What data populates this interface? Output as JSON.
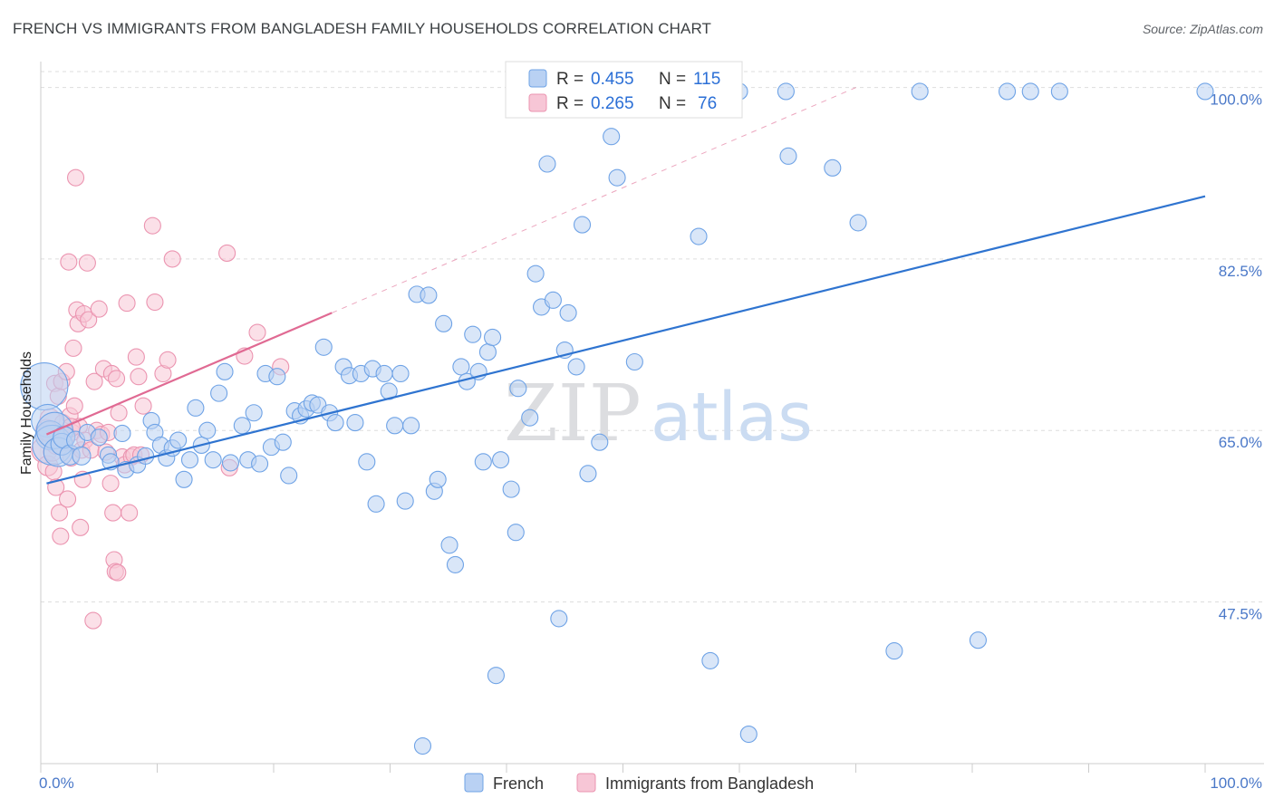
{
  "header": {
    "title": "FRENCH VS IMMIGRANTS FROM BANGLADESH FAMILY HOUSEHOLDS CORRELATION CHART",
    "source": "Source: ZipAtlas.com"
  },
  "watermark": {
    "zip": "ZIP",
    "atlas": "atlas"
  },
  "colors": {
    "french": "#6fa3e6",
    "french_fill": "#b9d1f3",
    "french_line": "#2f74d0",
    "bangladesh": "#eb94b0",
    "bangladesh_fill": "#f7c6d6",
    "bangladesh_line": "#e06a93",
    "grid": "#dddddd",
    "tick_label": "#4a78c8"
  },
  "legend": {
    "rows": [
      {
        "r_label": "R =",
        "r_value": "0.455",
        "n_label": "N =",
        "n_value": "115"
      },
      {
        "r_label": "R =",
        "r_value": "0.265",
        "n_label": "N =",
        "n_value": "76"
      }
    ]
  },
  "chart_data": {
    "type": "scatter",
    "title": "FRENCH VS IMMIGRANTS FROM BANGLADESH FAMILY HOUSEHOLDS CORRELATION CHART",
    "xlabel": "",
    "ylabel": "Family Households",
    "xlim": [
      0,
      100
    ],
    "ylim": [
      31,
      102
    ],
    "x_tick_labels": [
      "0.0%",
      "100.0%"
    ],
    "y_ticks": [
      47.5,
      65.0,
      82.5,
      100.0
    ],
    "y_tick_labels": [
      "47.5%",
      "65.0%",
      "82.5%",
      "100.0%"
    ],
    "grid": true,
    "legend_position": "top-center",
    "series": [
      {
        "name": "French",
        "R": 0.455,
        "N": 115,
        "trend": {
          "x": [
            0.5,
            100
          ],
          "y": [
            59.6,
            88.9
          ]
        },
        "points": [
          [
            0.3,
            69.5,
            26
          ],
          [
            0.6,
            66.0,
            18
          ],
          [
            0.8,
            64.5,
            16
          ],
          [
            1.0,
            63.5,
            22
          ],
          [
            1.2,
            65.0,
            20
          ],
          [
            1.5,
            62.8,
            16
          ],
          [
            1.8,
            63.6,
            12
          ],
          [
            2.0,
            64.3,
            12
          ],
          [
            2.5,
            62.5,
            11
          ],
          [
            3.0,
            64.0,
            10
          ],
          [
            3.5,
            62.4,
            10
          ],
          [
            4.0,
            64.8,
            9
          ],
          [
            5.0,
            64.3,
            9
          ],
          [
            5.8,
            62.5,
            9
          ],
          [
            6.0,
            61.8,
            9
          ],
          [
            7.0,
            64.7,
            9
          ],
          [
            7.3,
            61.0,
            9
          ],
          [
            8.3,
            61.5,
            9
          ],
          [
            9.0,
            62.4,
            9
          ],
          [
            9.5,
            66.0,
            9
          ],
          [
            9.8,
            64.8,
            9
          ],
          [
            10.3,
            63.5,
            9
          ],
          [
            10.8,
            62.2,
            9
          ],
          [
            11.3,
            63.2,
            9
          ],
          [
            11.8,
            64.0,
            9
          ],
          [
            12.3,
            60.0,
            9
          ],
          [
            12.8,
            62.0,
            9
          ],
          [
            13.3,
            67.3,
            9
          ],
          [
            13.8,
            63.5,
            9
          ],
          [
            14.3,
            65.0,
            9
          ],
          [
            14.8,
            62.0,
            9
          ],
          [
            15.3,
            68.8,
            9
          ],
          [
            15.8,
            71.0,
            9
          ],
          [
            16.3,
            61.7,
            9
          ],
          [
            17.3,
            65.5,
            9
          ],
          [
            17.8,
            62.0,
            9
          ],
          [
            18.3,
            66.8,
            9
          ],
          [
            18.8,
            61.6,
            9
          ],
          [
            19.3,
            70.8,
            9
          ],
          [
            19.8,
            63.3,
            9
          ],
          [
            20.3,
            70.5,
            9
          ],
          [
            20.8,
            63.8,
            9
          ],
          [
            21.3,
            60.4,
            9
          ],
          [
            21.8,
            67.0,
            9
          ],
          [
            22.3,
            66.5,
            9
          ],
          [
            22.8,
            67.2,
            9
          ],
          [
            23.3,
            67.8,
            9
          ],
          [
            23.8,
            67.6,
            9
          ],
          [
            24.3,
            73.5,
            9
          ],
          [
            24.8,
            66.8,
            9
          ],
          [
            25.3,
            65.8,
            9
          ],
          [
            26.0,
            71.5,
            9
          ],
          [
            26.5,
            70.6,
            9
          ],
          [
            27.0,
            65.8,
            9
          ],
          [
            27.5,
            70.8,
            9
          ],
          [
            28.0,
            61.8,
            9
          ],
          [
            28.5,
            71.3,
            9
          ],
          [
            28.8,
            57.5,
            9
          ],
          [
            29.5,
            70.8,
            9
          ],
          [
            29.9,
            69.0,
            9
          ],
          [
            30.4,
            65.5,
            9
          ],
          [
            30.9,
            70.8,
            9
          ],
          [
            31.3,
            57.8,
            9
          ],
          [
            31.8,
            65.5,
            9
          ],
          [
            32.3,
            78.9,
            9
          ],
          [
            32.8,
            32.8,
            9
          ],
          [
            33.3,
            78.8,
            9
          ],
          [
            33.8,
            58.8,
            9
          ],
          [
            34.1,
            60.0,
            9
          ],
          [
            34.6,
            75.9,
            9
          ],
          [
            35.1,
            53.3,
            9
          ],
          [
            35.6,
            51.3,
            9
          ],
          [
            36.1,
            71.5,
            9
          ],
          [
            36.6,
            70.0,
            9
          ],
          [
            37.1,
            74.8,
            9
          ],
          [
            37.6,
            71.0,
            9
          ],
          [
            38.0,
            61.8,
            9
          ],
          [
            38.4,
            73.0,
            9
          ],
          [
            38.8,
            74.5,
            9
          ],
          [
            39.1,
            40.0,
            9
          ],
          [
            39.5,
            62.0,
            9
          ],
          [
            40.4,
            59.0,
            9
          ],
          [
            40.8,
            54.6,
            9
          ],
          [
            41.0,
            69.3,
            9
          ],
          [
            42.0,
            66.3,
            9
          ],
          [
            42.5,
            81.0,
            9
          ],
          [
            43.0,
            77.6,
            9
          ],
          [
            43.5,
            92.2,
            9
          ],
          [
            44.0,
            78.3,
            9
          ],
          [
            44.5,
            45.8,
            9
          ],
          [
            45.0,
            73.2,
            9
          ],
          [
            45.3,
            77.0,
            9
          ],
          [
            46.0,
            71.5,
            9
          ],
          [
            46.5,
            86.0,
            9
          ],
          [
            47.0,
            60.6,
            9
          ],
          [
            48.0,
            63.8,
            9
          ],
          [
            49.0,
            95.0,
            9
          ],
          [
            49.5,
            90.8,
            9
          ],
          [
            51.0,
            72.0,
            9
          ],
          [
            52.0,
            99.5,
            9
          ],
          [
            52.5,
            99.3,
            9
          ],
          [
            56.5,
            84.8,
            9
          ],
          [
            57.5,
            41.5,
            9
          ],
          [
            60.0,
            99.6,
            9
          ],
          [
            60.8,
            34.0,
            9
          ],
          [
            64.0,
            99.6,
            9
          ],
          [
            64.2,
            93.0,
            9
          ],
          [
            68.0,
            91.8,
            9
          ],
          [
            70.2,
            86.2,
            9
          ],
          [
            73.3,
            42.5,
            9
          ],
          [
            75.5,
            99.6,
            9
          ],
          [
            80.5,
            43.6,
            9
          ],
          [
            83.0,
            99.6,
            9
          ],
          [
            85.0,
            99.6,
            9
          ],
          [
            87.5,
            99.6,
            9
          ],
          [
            100.0,
            99.6,
            9
          ]
        ]
      },
      {
        "name": "Immigrants from Bangladesh",
        "R": 0.265,
        "N": 76,
        "trend": {
          "x": [
            0.5,
            25.0
          ],
          "y": [
            64.6,
            77.0
          ]
        },
        "trend_extension": {
          "x": [
            25.0,
            70.0
          ],
          "y": [
            77.0,
            100.0
          ]
        },
        "points": [
          [
            0.3,
            63.0,
            14
          ],
          [
            0.5,
            65.0,
            12
          ],
          [
            0.6,
            61.4,
            11
          ],
          [
            0.8,
            66.2,
            11
          ],
          [
            0.9,
            64.0,
            10
          ],
          [
            1.0,
            62.8,
            10
          ],
          [
            1.1,
            60.8,
            9
          ],
          [
            1.2,
            69.8,
            9
          ],
          [
            1.3,
            59.2,
            9
          ],
          [
            1.4,
            64.4,
            9
          ],
          [
            1.5,
            68.5,
            9
          ],
          [
            1.6,
            56.6,
            9
          ],
          [
            1.7,
            54.2,
            9
          ],
          [
            1.8,
            70.0,
            9
          ],
          [
            1.9,
            65.8,
            9
          ],
          [
            2.0,
            63.8,
            9
          ],
          [
            2.2,
            71.0,
            9
          ],
          [
            2.3,
            58.0,
            9
          ],
          [
            2.4,
            82.2,
            9
          ],
          [
            2.5,
            66.5,
            9
          ],
          [
            2.6,
            62.2,
            9
          ],
          [
            2.7,
            64.8,
            9
          ],
          [
            2.8,
            73.4,
            9
          ],
          [
            2.9,
            67.5,
            9
          ],
          [
            3.0,
            90.8,
            9
          ],
          [
            3.1,
            77.3,
            9
          ],
          [
            3.2,
            75.9,
            9
          ],
          [
            3.3,
            65.4,
            9
          ],
          [
            3.4,
            55.1,
            9
          ],
          [
            3.5,
            63.0,
            9
          ],
          [
            3.6,
            60.0,
            9
          ],
          [
            3.7,
            76.9,
            9
          ],
          [
            3.8,
            64.0,
            9
          ],
          [
            4.0,
            82.1,
            9
          ],
          [
            4.1,
            76.3,
            9
          ],
          [
            4.3,
            63.0,
            9
          ],
          [
            4.5,
            45.6,
            9
          ],
          [
            4.6,
            70.0,
            9
          ],
          [
            4.8,
            65.0,
            9
          ],
          [
            5.0,
            77.4,
            9
          ],
          [
            5.2,
            64.6,
            9
          ],
          [
            5.4,
            71.3,
            9
          ],
          [
            5.6,
            62.8,
            9
          ],
          [
            5.8,
            64.8,
            9
          ],
          [
            6.0,
            59.6,
            9
          ],
          [
            6.1,
            70.8,
            9
          ],
          [
            6.2,
            56.6,
            9
          ],
          [
            6.3,
            51.8,
            9
          ],
          [
            6.4,
            50.6,
            9
          ],
          [
            6.5,
            70.3,
            9
          ],
          [
            6.6,
            50.5,
            9
          ],
          [
            6.7,
            66.8,
            9
          ],
          [
            7.0,
            62.3,
            9
          ],
          [
            7.2,
            61.5,
            9
          ],
          [
            7.4,
            78.0,
            9
          ],
          [
            7.6,
            56.6,
            9
          ],
          [
            7.8,
            62.3,
            9
          ],
          [
            8.0,
            62.5,
            9
          ],
          [
            8.2,
            72.5,
            9
          ],
          [
            8.4,
            70.5,
            9
          ],
          [
            8.6,
            62.5,
            9
          ],
          [
            8.8,
            67.5,
            9
          ],
          [
            9.6,
            85.9,
            9
          ],
          [
            9.8,
            78.1,
            9
          ],
          [
            10.5,
            70.8,
            9
          ],
          [
            10.9,
            72.2,
            9
          ],
          [
            11.3,
            82.5,
            9
          ],
          [
            16.0,
            83.1,
            9
          ],
          [
            16.2,
            61.2,
            9
          ],
          [
            17.5,
            72.6,
            9
          ],
          [
            18.6,
            75.0,
            9
          ],
          [
            20.6,
            71.5,
            9
          ],
          [
            2.1,
            64.5,
            11
          ],
          [
            1.3,
            63.5,
            10
          ],
          [
            0.7,
            64.9,
            11
          ],
          [
            2.6,
            65.3,
            10
          ]
        ]
      }
    ]
  },
  "bottom_legend": {
    "items": [
      {
        "label": "French"
      },
      {
        "label": "Immigrants from Bangladesh"
      }
    ]
  }
}
